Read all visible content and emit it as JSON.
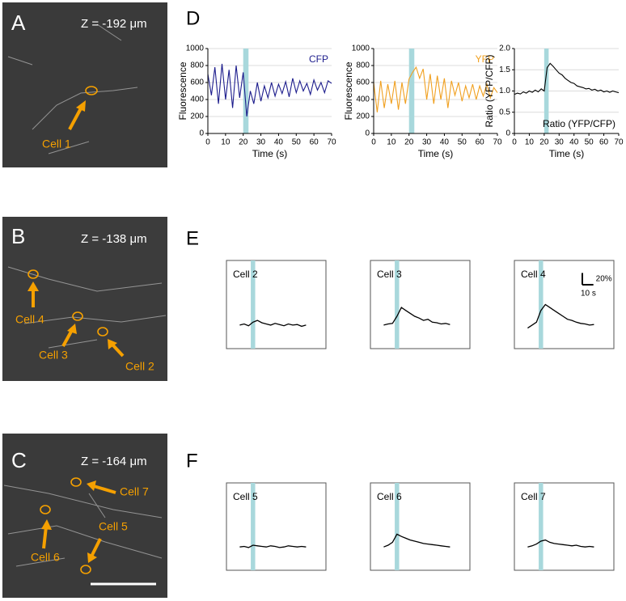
{
  "section_labels": [
    "D",
    "E",
    "F"
  ],
  "images": [
    {
      "letter": "A",
      "z_label": "Z = -192 μm",
      "cells": [
        "Cell 1"
      ]
    },
    {
      "letter": "B",
      "z_label": "Z = -138 μm",
      "cells": [
        "Cell 4",
        "Cell 3",
        "Cell 2"
      ]
    },
    {
      "letter": "C",
      "z_label": "Z = -164 μm",
      "cells": [
        "Cell 7",
        "Cell 5",
        "Cell 6"
      ]
    }
  ],
  "chart_data": [
    {
      "type": "line",
      "xlabel": "Time (s)",
      "ylabel": "Fluorescence",
      "x": [
        0,
        2,
        4,
        6,
        8,
        10,
        12,
        14,
        16,
        18,
        20,
        22,
        24,
        26,
        28,
        30,
        32,
        34,
        36,
        38,
        40,
        42,
        44,
        46,
        48,
        50,
        52,
        54,
        56,
        58,
        60,
        62,
        64,
        66,
        68,
        70
      ],
      "series": [
        {
          "name": "CFP",
          "color": "#1c1c8c",
          "values": [
            700,
            450,
            780,
            350,
            820,
            400,
            750,
            300,
            800,
            420,
            720,
            200,
            500,
            350,
            600,
            380,
            560,
            420,
            600,
            440,
            580,
            470,
            610,
            430,
            650,
            480,
            620,
            500,
            590,
            460,
            630,
            510,
            600,
            480,
            620,
            590
          ]
        }
      ],
      "xlim": [
        0,
        70
      ],
      "xticks": [
        0,
        10,
        20,
        30,
        40,
        50,
        60,
        70
      ],
      "ylim": [
        0,
        1000
      ],
      "yticks": [
        0,
        200,
        400,
        600,
        800,
        1000
      ],
      "grid": true,
      "legend": "upper right",
      "stimulus": [
        20,
        23
      ],
      "stimulus_color": "#a8d8dc"
    },
    {
      "type": "line",
      "xlabel": "Time (s)",
      "ylabel": "Fluorescence",
      "x": [
        0,
        2,
        4,
        6,
        8,
        10,
        12,
        14,
        16,
        18,
        20,
        22,
        24,
        26,
        28,
        30,
        32,
        34,
        36,
        38,
        40,
        42,
        44,
        46,
        48,
        50,
        52,
        54,
        56,
        58,
        60,
        62,
        64,
        66,
        68,
        70
      ],
      "series": [
        {
          "name": "YFP",
          "color": "#f0a020",
          "values": [
            600,
            250,
            620,
            300,
            580,
            350,
            620,
            280,
            600,
            350,
            640,
            720,
            780,
            650,
            760,
            400,
            700,
            350,
            680,
            400,
            650,
            300,
            620,
            450,
            600,
            380,
            560,
            420,
            580,
            400,
            560,
            440,
            580,
            420,
            540,
            480
          ]
        }
      ],
      "xlim": [
        0,
        70
      ],
      "xticks": [
        0,
        10,
        20,
        30,
        40,
        50,
        60,
        70
      ],
      "ylim": [
        0,
        1000
      ],
      "yticks": [
        0,
        200,
        400,
        600,
        800,
        1000
      ],
      "grid": true,
      "legend": "upper right",
      "stimulus": [
        20,
        23
      ],
      "stimulus_color": "#a8d8dc"
    },
    {
      "type": "line",
      "xlabel": "Time (s)",
      "ylabel": "Ratio (YFP/CFP)",
      "x": [
        0,
        2,
        4,
        6,
        8,
        10,
        12,
        14,
        16,
        18,
        20,
        22,
        24,
        26,
        28,
        30,
        32,
        34,
        36,
        38,
        40,
        42,
        44,
        46,
        48,
        50,
        52,
        54,
        56,
        58,
        60,
        62,
        64,
        66,
        68,
        70
      ],
      "series": [
        {
          "name": "Ratio (YFP/CFP)",
          "color": "#000000",
          "values": [
            0.92,
            0.95,
            0.93,
            0.98,
            0.95,
            1.0,
            0.97,
            1.02,
            0.98,
            1.05,
            1.0,
            1.55,
            1.65,
            1.58,
            1.5,
            1.42,
            1.38,
            1.3,
            1.25,
            1.2,
            1.18,
            1.12,
            1.1,
            1.08,
            1.05,
            1.06,
            1.02,
            1.04,
            1.0,
            1.02,
            0.98,
            1.0,
            0.97,
            1.0,
            0.98,
            0.96
          ]
        }
      ],
      "xlim": [
        0,
        70
      ],
      "xticks": [
        0,
        10,
        20,
        30,
        40,
        50,
        60,
        70
      ],
      "ylim": [
        0,
        2
      ],
      "yticks": [
        0,
        0.5,
        {
          "value": 1,
          "label": "1.0"
        },
        1.5,
        {
          "value": 2,
          "label": "2.0"
        }
      ],
      "grid": true,
      "legend": "lower right",
      "stimulus": [
        20,
        23
      ],
      "stimulus_color": "#a8d8dc"
    },
    {
      "type": "trace",
      "title": "Cell 2",
      "x": [
        0,
        4,
        8,
        12,
        16,
        20,
        24,
        28,
        32,
        36,
        40,
        44,
        48,
        52,
        56,
        60
      ],
      "series": [
        {
          "color": "#000000",
          "values": [
            0,
            2,
            -1,
            5,
            8,
            4,
            2,
            0,
            3,
            1,
            -1,
            2,
            0,
            1,
            -2,
            0
          ]
        }
      ],
      "xlim": [
        -12,
        78
      ],
      "ylim": [
        -40,
        110
      ],
      "stimulus": [
        10,
        14
      ],
      "stimulus_color": "#a8d8dc"
    },
    {
      "type": "trace",
      "title": "Cell 3",
      "x": [
        0,
        4,
        8,
        12,
        16,
        20,
        24,
        28,
        32,
        36,
        40,
        44,
        48,
        52,
        56,
        60
      ],
      "series": [
        {
          "color": "#000000",
          "values": [
            0,
            2,
            3,
            15,
            30,
            25,
            20,
            15,
            12,
            8,
            10,
            5,
            4,
            2,
            3,
            1
          ]
        }
      ],
      "xlim": [
        -12,
        78
      ],
      "ylim": [
        -40,
        110
      ],
      "stimulus": [
        10,
        14
      ],
      "stimulus_color": "#a8d8dc"
    },
    {
      "type": "trace",
      "title": "Cell 4",
      "x": [
        0,
        4,
        8,
        12,
        16,
        20,
        24,
        28,
        32,
        36,
        40,
        44,
        48,
        52,
        56,
        60
      ],
      "series": [
        {
          "color": "#000000",
          "values": [
            -5,
            0,
            5,
            25,
            35,
            30,
            25,
            20,
            15,
            10,
            8,
            5,
            3,
            2,
            0,
            1
          ]
        }
      ],
      "xlim": [
        -12,
        78
      ],
      "ylim": [
        -40,
        110
      ],
      "stimulus": [
        10,
        14
      ],
      "stimulus_color": "#a8d8dc",
      "scale_bar": {
        "y": 20,
        "y_label": "20%",
        "x": 10,
        "x_label": "10 s"
      }
    },
    {
      "type": "trace",
      "title": "Cell 5",
      "x": [
        0,
        4,
        8,
        12,
        16,
        20,
        24,
        28,
        32,
        36,
        40,
        44,
        48,
        52,
        56,
        60
      ],
      "series": [
        {
          "color": "#000000",
          "values": [
            0,
            1,
            -1,
            3,
            2,
            1,
            0,
            2,
            1,
            -1,
            0,
            2,
            1,
            0,
            1,
            0
          ]
        }
      ],
      "xlim": [
        -12,
        78
      ],
      "ylim": [
        -40,
        110
      ],
      "stimulus": [
        10,
        14
      ],
      "stimulus_color": "#a8d8dc"
    },
    {
      "type": "trace",
      "title": "Cell 6",
      "x": [
        0,
        4,
        8,
        12,
        16,
        20,
        24,
        28,
        32,
        36,
        40,
        44,
        48,
        52,
        56,
        60
      ],
      "series": [
        {
          "color": "#000000",
          "values": [
            0,
            3,
            8,
            22,
            18,
            15,
            12,
            10,
            8,
            6,
            5,
            4,
            3,
            2,
            1,
            0
          ]
        }
      ],
      "xlim": [
        -12,
        78
      ],
      "ylim": [
        -40,
        110
      ],
      "stimulus": [
        10,
        14
      ],
      "stimulus_color": "#a8d8dc"
    },
    {
      "type": "trace",
      "title": "Cell 7",
      "x": [
        0,
        4,
        8,
        12,
        16,
        20,
        24,
        28,
        32,
        36,
        40,
        44,
        48,
        52,
        56,
        60
      ],
      "series": [
        {
          "color": "#000000",
          "values": [
            0,
            2,
            5,
            10,
            12,
            8,
            6,
            5,
            4,
            3,
            2,
            3,
            1,
            0,
            1,
            0
          ]
        }
      ],
      "xlim": [
        -12,
        78
      ],
      "ylim": [
        -40,
        110
      ],
      "stimulus": [
        10,
        14
      ],
      "stimulus_color": "#a8d8dc"
    }
  ]
}
